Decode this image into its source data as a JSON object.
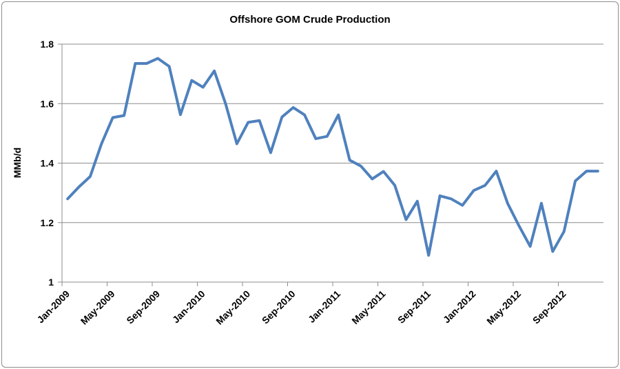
{
  "chart_data": {
    "type": "line",
    "title": "Offshore GOM Crude Production",
    "ylabel": "MMb/d",
    "xlabel": "",
    "ylim": [
      1,
      1.8
    ],
    "yticks": [
      "1",
      "1.2",
      "1.4",
      "1.6",
      "1.8"
    ],
    "grid": true,
    "legend": "none",
    "line_color": "#4f81bd",
    "xtick_labels": [
      "Jan-2009",
      "May-2009",
      "Sep-2009",
      "Jan-2010",
      "May-2010",
      "Sep-2010",
      "Jan-2011",
      "May-2011",
      "Sep-2011",
      "Jan-2012",
      "May-2012",
      "Sep-2012"
    ],
    "x": [
      "Jan-2009",
      "Feb-2009",
      "Mar-2009",
      "Apr-2009",
      "May-2009",
      "Jun-2009",
      "Jul-2009",
      "Aug-2009",
      "Sep-2009",
      "Oct-2009",
      "Nov-2009",
      "Dec-2009",
      "Jan-2010",
      "Feb-2010",
      "Mar-2010",
      "Apr-2010",
      "May-2010",
      "Jun-2010",
      "Jul-2010",
      "Aug-2010",
      "Sep-2010",
      "Oct-2010",
      "Nov-2010",
      "Dec-2010",
      "Jan-2011",
      "Feb-2011",
      "Mar-2011",
      "Apr-2011",
      "May-2011",
      "Jun-2011",
      "Jul-2011",
      "Aug-2011",
      "Sep-2011",
      "Oct-2011",
      "Nov-2011",
      "Dec-2011",
      "Jan-2012",
      "Feb-2012",
      "Mar-2012",
      "Apr-2012",
      "May-2012",
      "Jun-2012",
      "Jul-2012",
      "Aug-2012",
      "Sep-2012",
      "Oct-2012",
      "Nov-2012",
      "Dec-2012"
    ],
    "series": [
      {
        "values": [
          1.28,
          1.32,
          1.355,
          1.465,
          1.553,
          1.56,
          1.735,
          1.735,
          1.752,
          1.725,
          1.563,
          1.678,
          1.655,
          1.71,
          1.6,
          1.465,
          1.537,
          1.543,
          1.435,
          1.555,
          1.587,
          1.562,
          1.482,
          1.49,
          1.562,
          1.41,
          1.39,
          1.347,
          1.372,
          1.325,
          1.21,
          1.272,
          1.09,
          1.29,
          1.28,
          1.258,
          1.308,
          1.325,
          1.373,
          1.265,
          1.19,
          1.12,
          1.265,
          1.103,
          1.17,
          1.34,
          1.373,
          1.373
        ]
      }
    ]
  }
}
